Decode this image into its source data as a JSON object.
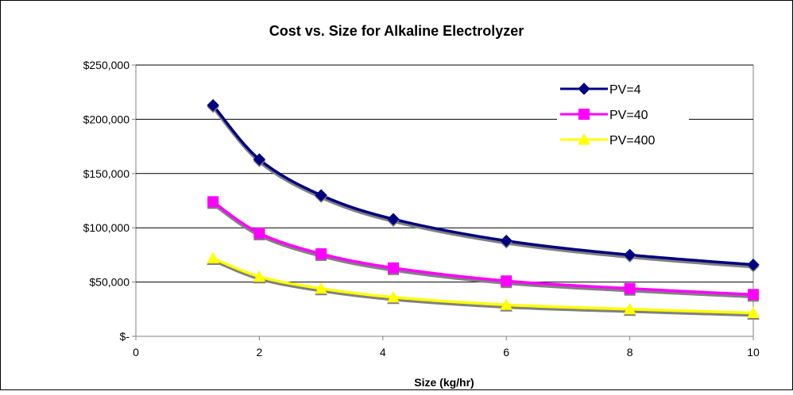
{
  "chart_data": {
    "type": "line",
    "title": "Cost vs. Size for Alkaline Electrolyzer",
    "xlabel": "Size (kg/hr)",
    "ylabel": "",
    "xlim": [
      0,
      10
    ],
    "ylim": [
      0,
      250000
    ],
    "x_ticks": [
      0,
      2,
      4,
      6,
      8,
      10
    ],
    "x_tick_labels": [
      "0",
      "2",
      "4",
      "6",
      "8",
      "10"
    ],
    "y_ticks": [
      0,
      50000,
      100000,
      150000,
      200000,
      250000
    ],
    "y_tick_labels": [
      "$-",
      "$50,000",
      "$100,000",
      "$150,000",
      "$200,000",
      "$250,000"
    ],
    "grid": "horizontal",
    "legend_position": "top-right",
    "x": [
      1.25,
      2,
      3,
      4.17,
      6,
      8,
      10
    ],
    "series": [
      {
        "name": "PV=4",
        "color": "#000080",
        "marker": "diamond",
        "values": [
          213000,
          163000,
          130000,
          108000,
          88000,
          75000,
          66000
        ]
      },
      {
        "name": "PV=40",
        "color": "#FF00FF",
        "marker": "square",
        "values": [
          124000,
          95000,
          76000,
          63000,
          51000,
          44000,
          38500
        ]
      },
      {
        "name": "PV=400",
        "color": "#FFFF00",
        "marker": "triangle",
        "values": [
          72000,
          55000,
          44000,
          36000,
          29000,
          25000,
          21500
        ]
      }
    ]
  }
}
